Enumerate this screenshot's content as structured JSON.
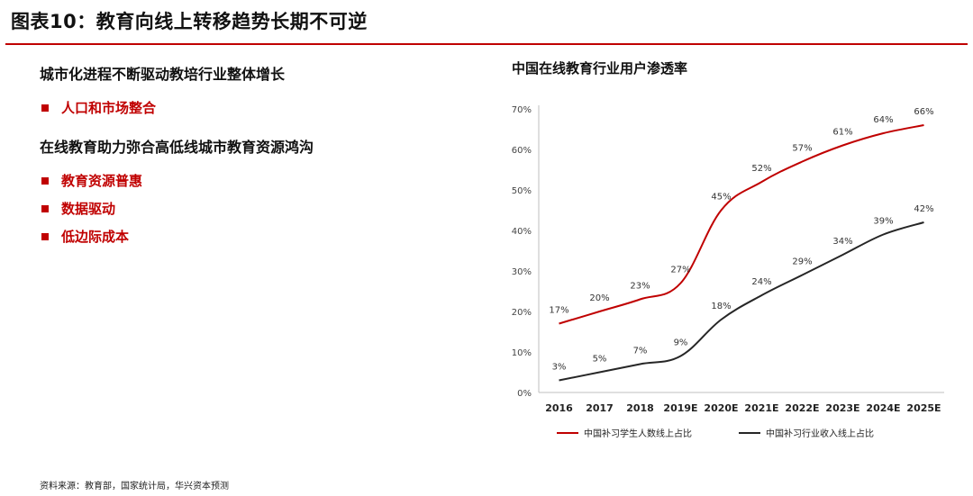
{
  "header": {
    "title": "图表10：教育向线上转移趋势长期不可逆"
  },
  "left_panel": {
    "sections": [
      {
        "heading": "城市化进程不断驱动教培行业整体增长",
        "bullets": [
          "人口和市场整合"
        ]
      },
      {
        "heading": "在线教育助力弥合高低线城市教育资源鸿沟",
        "bullets": [
          "教育资源普惠",
          "数据驱动",
          "低边际成本"
        ]
      }
    ]
  },
  "chart_data": {
    "type": "line",
    "title": "中国在线教育行业用户渗透率",
    "categories": [
      "2016",
      "2017",
      "2018",
      "2019E",
      "2020E",
      "2021E",
      "2022E",
      "2023E",
      "2024E",
      "2025E"
    ],
    "series": [
      {
        "name": "中国补习学生人数线上占比",
        "color": "#c00000",
        "values": [
          17,
          20,
          23,
          27,
          45,
          52,
          57,
          61,
          64,
          66
        ],
        "labels": [
          "17%",
          "20%",
          "23%",
          "27%",
          "45%",
          "52%",
          "57%",
          "61%",
          "64%",
          "66%"
        ]
      },
      {
        "name": "中国补习行业收入线上占比",
        "color": "#262626",
        "values": [
          3,
          5,
          7,
          9,
          18,
          24,
          29,
          34,
          39,
          42
        ],
        "labels": [
          "3%",
          "5%",
          "7%",
          "9%",
          "18%",
          "24%",
          "29%",
          "34%",
          "39%",
          "42%"
        ]
      }
    ],
    "ylim": [
      0,
      70
    ],
    "yticks": [
      "0%",
      "10%",
      "20%",
      "30%",
      "40%",
      "50%",
      "60%",
      "70%"
    ],
    "legend_position": "bottom",
    "grid": false
  },
  "footer": {
    "source": "资料来源：教育部，国家统计局，华兴资本预测"
  }
}
